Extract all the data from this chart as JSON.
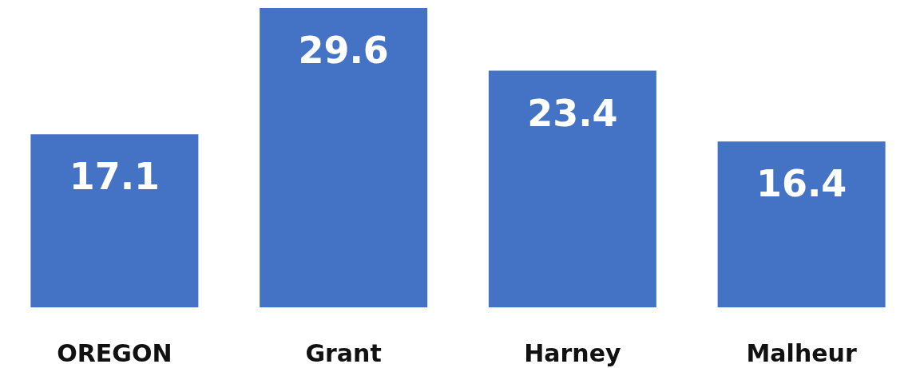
{
  "chart_data": {
    "type": "bar",
    "categories": [
      "OREGON",
      "Grant",
      "Harney",
      "Malheur"
    ],
    "values": [
      17.1,
      29.6,
      23.4,
      16.4
    ],
    "color": "#4472c4",
    "data_labels": true
  }
}
